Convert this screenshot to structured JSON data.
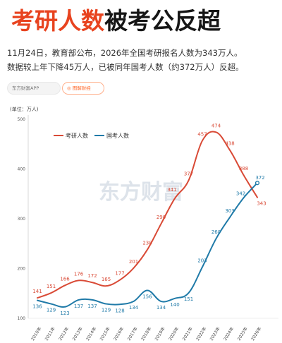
{
  "headline": {
    "part1": "考研人数",
    "part2": "被考公反超"
  },
  "subtitle": {
    "line1": "11月24日，教育部公布，2026年全国考研报名人数为343万人。",
    "line2": "数据较上年下降45万人，已被同年国考人数（约372万人）反超。"
  },
  "tabs": {
    "app": "东方财富APP",
    "active": "◎ 图解财经"
  },
  "chart_data": {
    "type": "line",
    "unit_label": "(单位：万人)",
    "categories": [
      "2010年",
      "2011年",
      "2012年",
      "2013年",
      "2014年",
      "2015年",
      "2016年",
      "2017年",
      "2018年",
      "2019年",
      "2020年",
      "2021年",
      "2022年",
      "2023年",
      "2024年",
      "2025年",
      "2026年"
    ],
    "y_ticks": [
      100,
      200,
      300,
      400,
      500
    ],
    "ylim": [
      100,
      500
    ],
    "grid": false,
    "legend_position": "top-left",
    "series": [
      {
        "name": "考研人数",
        "color": "#d94a36",
        "values": [
          141,
          151,
          166,
          176,
          172,
          165,
          177,
          201,
          238,
          290,
          341,
          377,
          457,
          474,
          438,
          388,
          343
        ]
      },
      {
        "name": "国考人数",
        "color": "#1f7aa8",
        "values": [
          136,
          129,
          123,
          137,
          137,
          129,
          128,
          134,
          156,
          134,
          140,
          151,
          203,
          260,
          303,
          342,
          372
        ]
      }
    ]
  },
  "watermark": "东方财富",
  "colors": {
    "accent": "#e8431f",
    "kaoyan": "#d94a36",
    "guokao": "#1f7aa8"
  }
}
